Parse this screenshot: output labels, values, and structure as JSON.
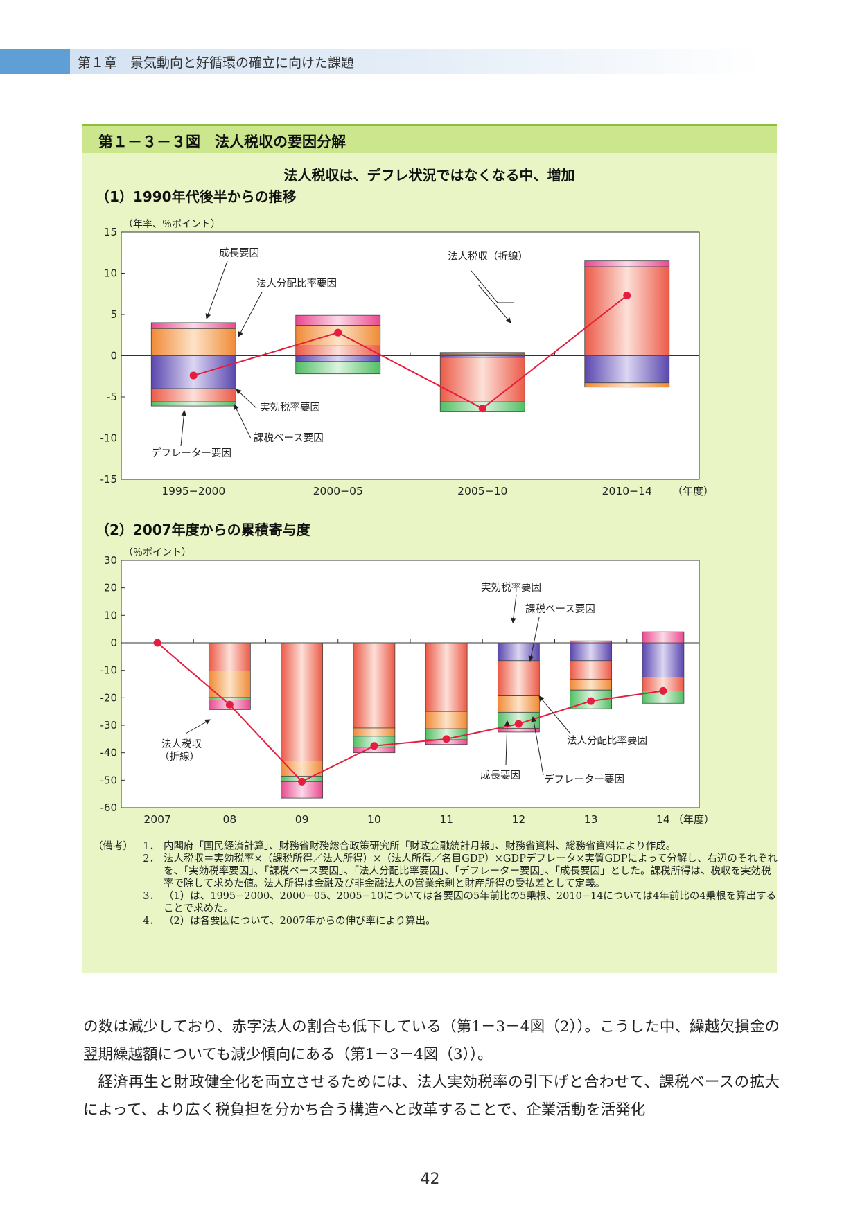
{
  "header": {
    "chapter": "第１章　景気動向と好循環の確立に向けた課題"
  },
  "figure": {
    "title": "第１－３－３図　法人税収の要因分解",
    "subtitle": "法人税収は、デフレ状況ではなくなる中、増加"
  },
  "colors": {
    "effective_rate": "#6a57b8",
    "tax_base": "#ef6a55",
    "distribution": "#f2994a",
    "deflator": "#7ccf86",
    "growth": "#ec5d9a",
    "line": "#e51d3e"
  },
  "chart_data": [
    {
      "type": "bar",
      "stacked": true,
      "title": "（1）1990年代後半からの推移",
      "unit_label": "（年率、％ポイント）",
      "xlabel_suffix": "（年度）",
      "categories": [
        "1995−2000",
        "2000−05",
        "2005−10",
        "2010−14"
      ],
      "ylim": [
        -15,
        15
      ],
      "yticks": [
        15,
        10,
        5,
        0,
        -5,
        -10,
        -15
      ],
      "tick_labels": [
        "15",
        "10",
        "5",
        "0",
        "-5",
        "-10",
        "-15"
      ],
      "series": [
        {
          "name": "実効税率要因",
          "key": "effective_rate",
          "values": [
            -4.0,
            -0.7,
            -0.2,
            -3.3
          ]
        },
        {
          "name": "課税ベース要因",
          "key": "tax_base",
          "values": [
            -1.6,
            1.2,
            -5.4,
            10.8
          ]
        },
        {
          "name": "法人分配比率要因",
          "key": "distribution",
          "values": [
            3.3,
            2.5,
            0.2,
            -0.5
          ]
        },
        {
          "name": "デフレーター要因",
          "key": "deflator",
          "values": [
            -0.5,
            -1.5,
            -1.2,
            0.0
          ]
        },
        {
          "name": "成長要因",
          "key": "growth",
          "values": [
            0.7,
            1.2,
            0.2,
            0.7
          ]
        }
      ],
      "line": {
        "name": "法人税収（折線）",
        "values": [
          -2.4,
          2.8,
          -6.4,
          7.3
        ]
      },
      "annotations": [
        "成長要因",
        "法人分配比率要因",
        "実効税率要因",
        "課税ベース要因",
        "デフレーター要因",
        "法人税収（折線）"
      ]
    },
    {
      "type": "bar",
      "stacked": true,
      "title": "（2）2007年度からの累積寄与度",
      "unit_label": "（％ポイント）",
      "xlabel_suffix": "（年度）",
      "categories": [
        "2007",
        "08",
        "09",
        "10",
        "11",
        "12",
        "13",
        "14"
      ],
      "ylim": [
        -60,
        30
      ],
      "yticks": [
        30,
        20,
        10,
        0,
        -10,
        -20,
        -30,
        -40,
        -50,
        -60
      ],
      "tick_labels": [
        "30",
        "20",
        "10",
        "0",
        "-10",
        "-20",
        "-30",
        "-40",
        "-50",
        "-60"
      ],
      "series": [
        {
          "name": "実効税率要因",
          "key": "effective_rate",
          "values": [
            0,
            0,
            0,
            0,
            0,
            -6.5,
            -6.5,
            -12.5
          ]
        },
        {
          "name": "課税ベース要因",
          "key": "tax_base",
          "values": [
            0,
            -10.2,
            -43.0,
            -31.0,
            -25.0,
            -12.8,
            -6.7,
            -5.0
          ]
        },
        {
          "name": "法人分配比率要因",
          "key": "distribution",
          "values": [
            0,
            -9.7,
            -5.5,
            -3.0,
            -6.3,
            -6.0,
            -4.0,
            0
          ]
        },
        {
          "name": "デフレーター要因",
          "key": "deflator",
          "values": [
            0,
            -0.9,
            -2.0,
            -4.0,
            -4.0,
            -5.8,
            -6.8,
            -4.5
          ]
        },
        {
          "name": "成長要因",
          "key": "growth",
          "values": [
            0,
            -3.5,
            -6.0,
            -2.0,
            -1.7,
            -1.4,
            0.7,
            4.0
          ]
        }
      ],
      "line": {
        "name": "法人税収（折線）",
        "values": [
          0,
          -22.5,
          -50.5,
          -37.5,
          -35.0,
          -29.5,
          -21.2,
          -17.5
        ]
      },
      "annotations": [
        "実効税率要因",
        "課税ベース要因",
        "法人分配比率要因",
        "成長要因",
        "デフレーター要因",
        "法人税収",
        "（折線）"
      ]
    }
  ],
  "notes": {
    "label": "（備考）",
    "items": [
      {
        "num": "1．",
        "text": "内閣府「国民経済計算」、財務省財務総合政策研究所「財政金融統計月報」、財務省資料、総務省資料により作成。"
      },
      {
        "num": "2．",
        "text": "法人税収＝実効税率×（課税所得／法人所得）×（法人所得／名目GDP）×GDPデフレータ×実質GDPによって分解し、右辺のそれぞれを、「実効税率要因」、「課税ベース要因」、「法人分配比率要因」、「デフレーター要因」、「成長要因」とした。課税所得は、税収を実効税率で除して求めた値。法人所得は金融及び非金融法人の営業余剰と財産所得の受払差として定義。"
      },
      {
        "num": "3．",
        "text": "（1）は、1995−2000、2000−05、2005−10については各要因の5年前比の5乗根、2010−14については4年前比の4乗根を算出することで求めた。"
      },
      {
        "num": "4．",
        "text": "（2）は各要因について、2007年からの伸び率により算出。"
      }
    ]
  },
  "body": {
    "p1": "の数は減少しており、赤字法人の割合も低下している（第1－3－4図（2））。こうした中、繰越欠損金の翌期繰越額についても減少傾向にある（第1－3－4図（3））。",
    "p2": "経済再生と財政健全化を両立させるためには、法人実効税率の引下げと合わせて、課税ベースの拡大によって、より広く税負担を分かち合う構造へと改革することで、企業活動を活発化"
  },
  "page_number": "42"
}
